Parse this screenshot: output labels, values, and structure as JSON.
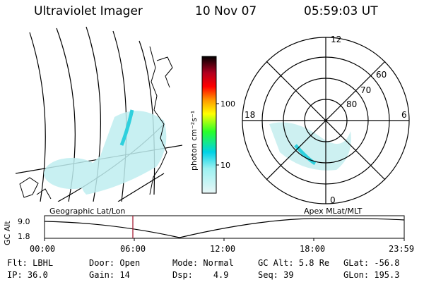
{
  "header": {
    "instrument": "Ultraviolet Imager",
    "date": "10 Nov 07",
    "time": "05:59:03 UT"
  },
  "colorbar": {
    "unit_label": "photon cm⁻²s⁻¹",
    "ticks": [
      "100",
      "10"
    ],
    "colors": [
      "#9cf1f1",
      "#00d2e6",
      "#2aff2a",
      "#ffff00",
      "#ff9900",
      "#ff0000",
      "#b00020",
      "#8a0040",
      "#000000"
    ]
  },
  "polar": {
    "mlt_labels": [
      "12",
      "18",
      "6",
      "0"
    ],
    "lat_labels": [
      "60",
      "70",
      "80"
    ]
  },
  "orbit": {
    "title_left": "Geographic Lat/Lon",
    "title_right": "Apex MLat/MLT",
    "axis_label": "GC Alt",
    "y_ticks": [
      "9.0",
      "1.8"
    ],
    "x_ticks": [
      "00:00",
      "06:00",
      "12:00",
      "18:00",
      "23:59"
    ]
  },
  "status": {
    "filter_label": "Flt:",
    "filter_value": "LBHL",
    "door_label": "Door:",
    "door_value": "Open",
    "mode_label": "Mode:",
    "mode_value": "Normal",
    "gcalt_label": "GC Alt:",
    "gcalt_value": "5.8 Re",
    "glat_label": "GLat:",
    "glat_value": "-56.8",
    "ip_label": "IP:",
    "ip_value": "36.0",
    "gain_label": "Gain:",
    "gain_value": "14",
    "dsp_label": "Dsp:",
    "dsp_value": "4.9",
    "seq_label": "Seq:",
    "seq_value": "39",
    "glon_label": "GLon:",
    "glon_value": "195.3"
  }
}
